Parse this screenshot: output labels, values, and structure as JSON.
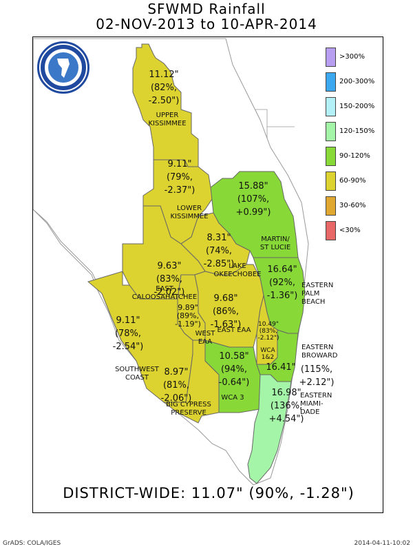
{
  "title_line1": "SFWMD Rainfall",
  "title_line2": "02-NOV-2013 to 10-APR-2014",
  "colors": {
    "gt300": "#b89ef0",
    "r200_300": "#3ca8f0",
    "r150_200": "#b4f0f8",
    "r120_150": "#a4f5a8",
    "r90_120": "#88d838",
    "r60_90": "#dcd230",
    "r30_60": "#e0a830",
    "lt30": "#e86868"
  },
  "legend": [
    {
      "label": ">300%",
      "color": "#b89ef0"
    },
    {
      "label": "200-300%",
      "color": "#3ca8f0"
    },
    {
      "label": "150-200%",
      "color": "#b4f0f8"
    },
    {
      "label": "120-150%",
      "color": "#a4f5a8"
    },
    {
      "label": "90-120%",
      "color": "#88d838"
    },
    {
      "label": "60-90%",
      "color": "#dcd230"
    },
    {
      "label": "30-60%",
      "color": "#e0a830"
    },
    {
      "label": "<30%",
      "color": "#e86868"
    }
  ],
  "regions": {
    "upper_kissimmee": {
      "name": "UPPER\nKISSIMMEE",
      "value": "11.12\"\n(82%,\n-2.50\")"
    },
    "lower_kissimmee": {
      "name": "LOWER\nKISSIMMEE",
      "value": "9.11\"\n(79%,\n-2.37\")"
    },
    "martin_st_lucie": {
      "name": "MARTIN/\nST LUCIE",
      "value": "15.88\"\n(107%,\n+0.99\")"
    },
    "lake_okeechobee": {
      "name": "LAKE\nOKEECHOBEE",
      "value": "8.31\"\n(74%,\n-2.85\")"
    },
    "east_caloosahatchee": {
      "name": "EAST\nCALOOSAHATCHEE",
      "value": "9.63\"\n(83%,\n-2.02\")"
    },
    "eastern_palm_beach": {
      "name": "EASTERN\nPALM\nBEACH",
      "value": "16.64\"\n(92%,\n-1.36\")"
    },
    "west_eaa": {
      "name": "WEST\nEAA",
      "value": "9.89\"\n(89%,\n-1.19\")"
    },
    "east_eaa": {
      "name": "EAST EAA",
      "value": "9.68\"\n(86%,\n-1.63\")"
    },
    "wca_1_2": {
      "name": "WCA\n1&2",
      "value": "10.49\"\n(83%,\n-2.12\")"
    },
    "southwest_coast": {
      "name": "SOUTHWEST\nCOAST",
      "value": "9.11\"\n(78%,\n-2.54\")"
    },
    "wca_3": {
      "name": "WCA 3",
      "value": "10.58\"\n(94%,\n-0.64\")"
    },
    "eastern_broward": {
      "name": "EASTERN\nBROWARD",
      "value": "16.41\"",
      "value_extra": "(115%,\n+2.12\")"
    },
    "big_cypress": {
      "name": "BIG CYPRESS\nPRESERVE",
      "value": "8.97\"\n(81%,\n-2.06\")"
    },
    "eastern_miami_dade": {
      "name": "EASTERN\nMIAMI-\nDADE",
      "value": "16.98\"\n(136%,\n+4.54\")"
    }
  },
  "district_wide": "DISTRICT-WIDE: 11.07\"  (90%, -1.28\")",
  "footer_left": "GrADS: COLA/IGES",
  "footer_right": "2014-04-11-10:02"
}
